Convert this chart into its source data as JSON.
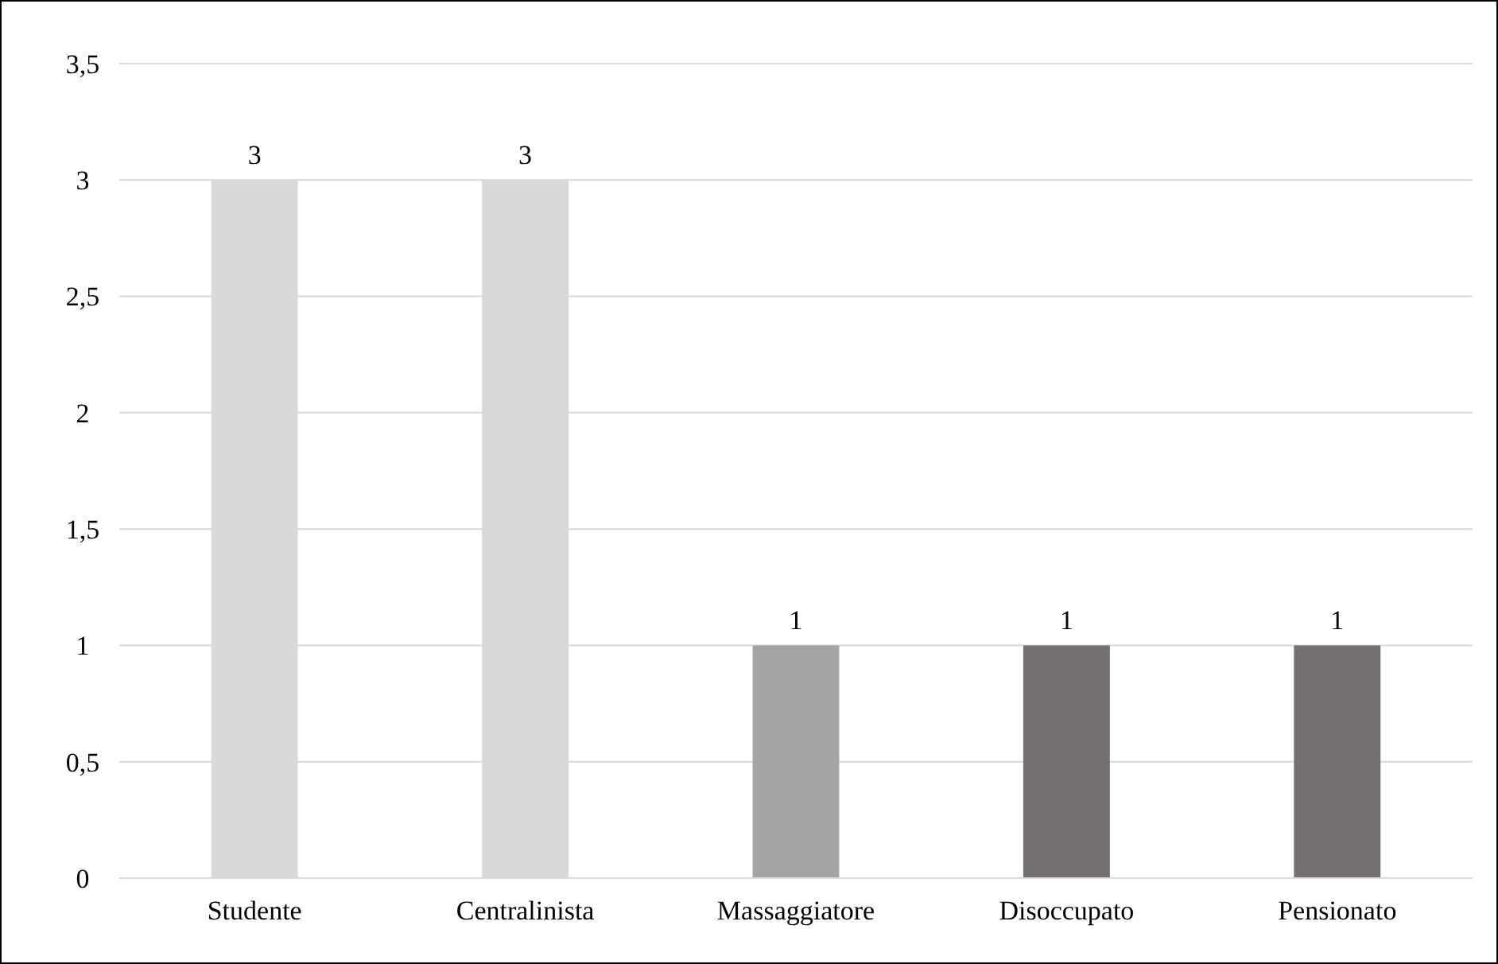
{
  "chart_data": {
    "type": "bar",
    "categories": [
      "Studente",
      "Centralinista",
      "Massaggiatore",
      "Disoccupato",
      "Pensionato"
    ],
    "values": [
      3,
      3,
      1,
      1,
      1
    ],
    "colors": [
      "#d9d9d9",
      "#d9d9d9",
      "#a5a5a5",
      "#767171",
      "#767171"
    ],
    "ylim": [
      0,
      3.5
    ],
    "yticks": [
      0,
      {
        "value": 0.5,
        "label": "0,5"
      },
      1,
      {
        "value": 1.5,
        "label": "1,5"
      },
      2,
      {
        "value": 2.5,
        "label": "2,5"
      },
      3,
      {
        "value": 3.5,
        "label": "3,5"
      }
    ],
    "grid": "y",
    "data_labels": true
  }
}
